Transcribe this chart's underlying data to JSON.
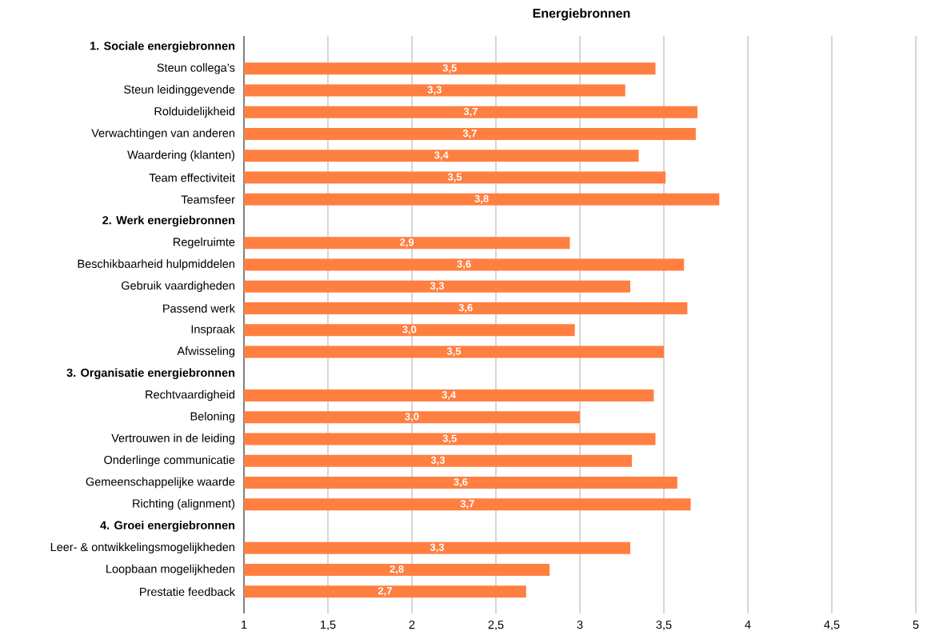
{
  "chart_data": {
    "type": "bar",
    "orientation": "horizontal",
    "title": "Energiebronnen",
    "categories": [
      "1. Sociale energiebronnen",
      "Steun collega’s",
      "Steun leidinggevende",
      "Rolduidelijkheid",
      "Verwachtingen van anderen",
      "Waardering (klanten)",
      "Team effectiviteit",
      "Teamsfeer",
      "2. Werk energiebronnen",
      "Regelruimte",
      "Beschikbaarheid hulpmiddelen",
      "Gebruik vaardigheden",
      "Passend werk",
      "Inspraak",
      "Afwisseling",
      "3. Organisatie energiebronnen",
      "Rechtvaardigheid",
      "Beloning",
      "Vertrouwen in de leiding",
      "Onderlinge communicatie",
      "Gemeenschappelijke waarde",
      "Richting (alignment)",
      "4. Groei energiebronnen",
      "Leer- & ontwikkelingsmogelijkheden",
      "Loopbaan mogelijkheden",
      "Prestatie feedback"
    ],
    "values": [
      null,
      3.45,
      3.27,
      3.7,
      3.69,
      3.35,
      3.51,
      3.83,
      null,
      2.94,
      3.62,
      3.3,
      3.64,
      2.97,
      3.5,
      null,
      3.44,
      3.0,
      3.45,
      3.31,
      3.58,
      3.66,
      null,
      3.3,
      2.82,
      2.68
    ],
    "value_labels": [
      null,
      "3,5",
      "3,3",
      "3,7",
      "3,7",
      "3,4",
      "3,5",
      "3,8",
      null,
      "2,9",
      "3,6",
      "3,3",
      "3,6",
      "3,0",
      "3,5",
      null,
      "3,4",
      "3,0",
      "3,5",
      "3,3",
      "3,6",
      "3,7",
      null,
      "3,3",
      "2,8",
      "2,7"
    ],
    "color": "#ff7f41",
    "xlim": [
      1,
      5
    ],
    "xticks": [
      1,
      {
        "value": 1.5,
        "label": "1,5"
      },
      2,
      {
        "value": 2.5,
        "label": "2,5"
      },
      3,
      {
        "value": 3.5,
        "label": "3,5"
      },
      4,
      {
        "value": 4.5,
        "label": "4,5"
      },
      5
    ],
    "grid": "x"
  }
}
